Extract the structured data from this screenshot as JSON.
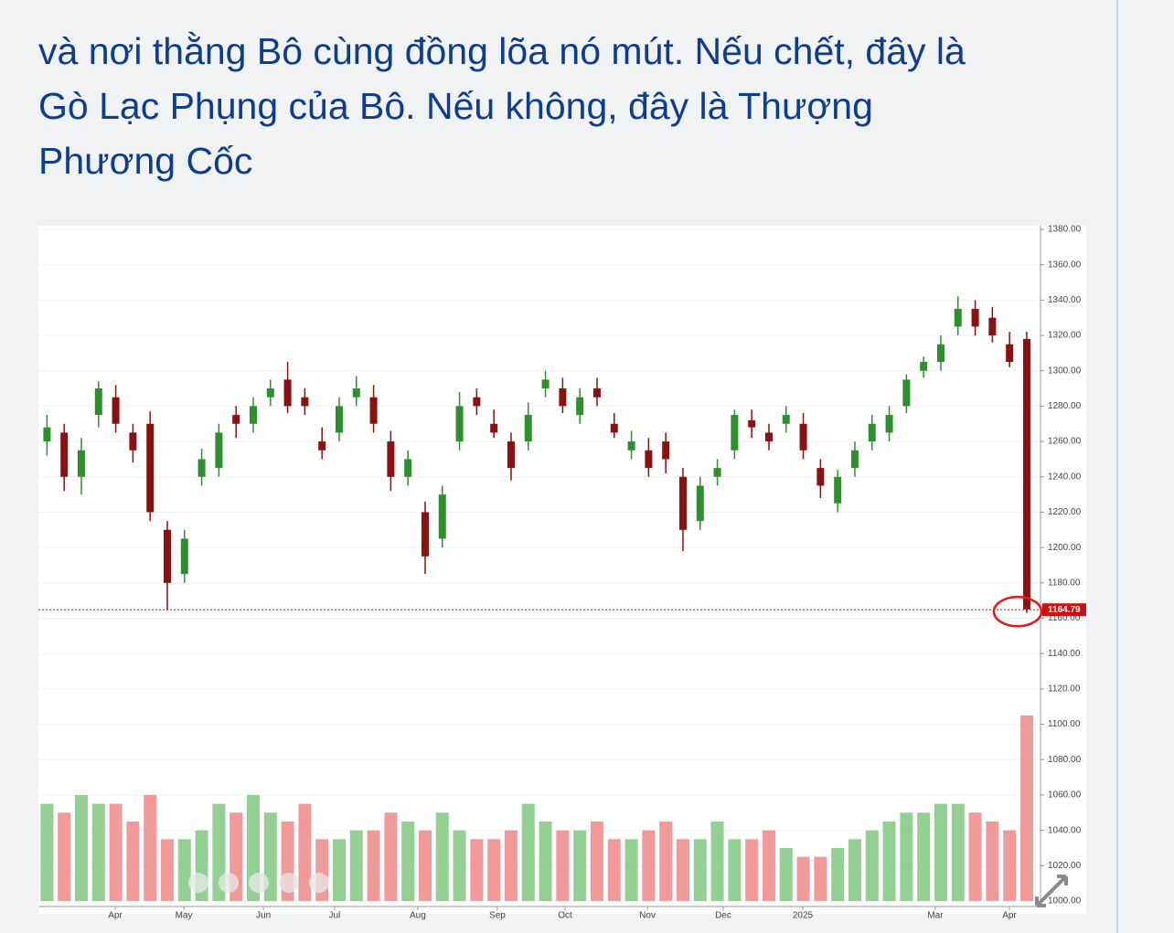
{
  "header": {
    "lines": [
      "và nơi thằng Bô cùng đồng lõa nó mút. Nếu chết, đây là",
      "Gò Lạc Phụng của Bô. Nếu không, đây là Thượng",
      "Phương Cốc"
    ]
  },
  "chart_data": {
    "type": "candlestick",
    "x": [
      0.5,
      1.5,
      2.5,
      3.5,
      4.5,
      5.5,
      6.5,
      7.5,
      8.5,
      9.5,
      10.5,
      11.5,
      12.5,
      13.5,
      14.5,
      15.5,
      16.5,
      17.5,
      18.5,
      19.5,
      20.5,
      21.5,
      22.5,
      23.5,
      24.5,
      25.5,
      26.5,
      27.5,
      28.5,
      29.5,
      30.5,
      31.5,
      32.5,
      33.5,
      34.5,
      35.5,
      36.5,
      37.5,
      38.5,
      39.5,
      40.5,
      41.5,
      42.5,
      43.5,
      44.5,
      45.5,
      46.5,
      47.5,
      48.5,
      49.5,
      50.5,
      51.5,
      52.5,
      53.5,
      54.5,
      55.5,
      56.5,
      57.5
    ],
    "open": [
      1260,
      1265,
      1240,
      1275,
      1285,
      1265,
      1270,
      1210,
      1185,
      1240,
      1245,
      1275,
      1270,
      1285,
      1295,
      1285,
      1260,
      1265,
      1285,
      1285,
      1260,
      1240,
      1220,
      1205,
      1260,
      1285,
      1270,
      1260,
      1260,
      1290,
      1290,
      1275,
      1290,
      1270,
      1255,
      1255,
      1260,
      1240,
      1215,
      1240,
      1255,
      1272,
      1265,
      1270,
      1270,
      1245,
      1225,
      1245,
      1260,
      1265,
      1280,
      1300,
      1305,
      1325,
      1335,
      1330,
      1315,
      1318
    ],
    "high": [
      1275,
      1270,
      1262,
      1294,
      1292,
      1270,
      1277,
      1215,
      1210,
      1256,
      1270,
      1280,
      1285,
      1295,
      1305,
      1290,
      1268,
      1285,
      1297,
      1292,
      1266,
      1255,
      1226,
      1235,
      1288,
      1290,
      1278,
      1265,
      1282,
      1300,
      1296,
      1290,
      1296,
      1276,
      1266,
      1262,
      1265,
      1245,
      1240,
      1250,
      1278,
      1278,
      1270,
      1280,
      1276,
      1250,
      1244,
      1260,
      1275,
      1280,
      1298,
      1308,
      1320,
      1342,
      1340,
      1336,
      1322,
      1322
    ],
    "low": [
      1252,
      1232,
      1230,
      1268,
      1265,
      1248,
      1215,
      1165,
      1180,
      1235,
      1240,
      1262,
      1265,
      1280,
      1276,
      1275,
      1250,
      1260,
      1280,
      1265,
      1232,
      1235,
      1185,
      1200,
      1255,
      1275,
      1262,
      1238,
      1255,
      1285,
      1276,
      1270,
      1280,
      1262,
      1250,
      1240,
      1242,
      1198,
      1210,
      1235,
      1250,
      1262,
      1255,
      1265,
      1250,
      1228,
      1220,
      1240,
      1255,
      1260,
      1276,
      1296,
      1300,
      1320,
      1320,
      1316,
      1302,
      1163
    ],
    "close": [
      1268,
      1240,
      1255,
      1290,
      1270,
      1255,
      1220,
      1180,
      1205,
      1250,
      1265,
      1270,
      1280,
      1290,
      1280,
      1280,
      1255,
      1280,
      1290,
      1270,
      1240,
      1250,
      1195,
      1230,
      1280,
      1280,
      1265,
      1245,
      1275,
      1295,
      1280,
      1285,
      1285,
      1265,
      1260,
      1245,
      1250,
      1210,
      1235,
      1245,
      1275,
      1268,
      1260,
      1275,
      1255,
      1235,
      1240,
      1255,
      1270,
      1275,
      1295,
      1305,
      1315,
      1335,
      1325,
      1320,
      1305,
      1165
    ],
    "volume": [
      1055,
      1050,
      1060,
      1055,
      1055,
      1045,
      1060,
      1035,
      1035,
      1040,
      1055,
      1050,
      1060,
      1050,
      1045,
      1055,
      1035,
      1035,
      1040,
      1040,
      1050,
      1045,
      1040,
      1050,
      1040,
      1035,
      1035,
      1040,
      1055,
      1045,
      1040,
      1040,
      1045,
      1035,
      1035,
      1040,
      1045,
      1035,
      1035,
      1045,
      1035,
      1035,
      1040,
      1030,
      1025,
      1025,
      1030,
      1035,
      1040,
      1045,
      1050,
      1050,
      1055,
      1055,
      1050,
      1045,
      1040,
      1105
    ],
    "up_color": "#2f8f2f",
    "down_color": "#8b1010",
    "volume_up_color": "#94cf94",
    "volume_down_color": "#f29a9a",
    "last_price": 1164.79,
    "last_price_color": "#d01010",
    "xlim": [
      0,
      58.3
    ],
    "xticks": [
      {
        "value": 4.47,
        "label": "Apr"
      },
      {
        "value": 8.46,
        "label": "May"
      },
      {
        "value": 13.09,
        "label": "Jun"
      },
      {
        "value": 17.23,
        "label": "Jul"
      },
      {
        "value": 22.07,
        "label": "Aug"
      },
      {
        "value": 26.7,
        "label": "Sep"
      },
      {
        "value": 30.64,
        "label": "Oct"
      },
      {
        "value": 35.43,
        "label": "Nov"
      },
      {
        "value": 39.84,
        "label": "Dec"
      },
      {
        "value": 44.47,
        "label": "2025"
      },
      {
        "value": 52.18,
        "label": "Mar"
      },
      {
        "value": 56.49,
        "label": "Apr"
      }
    ],
    "ylim": [
      1000,
      1380
    ],
    "yticks": [
      {
        "value": 1000,
        "label": "1000.00"
      },
      {
        "value": 1020,
        "label": "1020.00"
      },
      {
        "value": 1040,
        "label": "1040.00"
      },
      {
        "value": 1060,
        "label": "1060.00"
      },
      {
        "value": 1080,
        "label": "1080.00"
      },
      {
        "value": 1100,
        "label": "1100.00"
      },
      {
        "value": 1120,
        "label": "1120.00"
      },
      {
        "value": 1140,
        "label": "1140.00"
      },
      {
        "value": 1160,
        "label": "1160.00"
      },
      {
        "value": 1180,
        "label": "1180.00"
      },
      {
        "value": 1200,
        "label": "1200.00"
      },
      {
        "value": 1220,
        "label": "1220.00"
      },
      {
        "value": 1240,
        "label": "1240.00"
      },
      {
        "value": 1260,
        "label": "1260.00"
      },
      {
        "value": 1280,
        "label": "1280.00"
      },
      {
        "value": 1300,
        "label": "1300.00"
      },
      {
        "value": 1320,
        "label": "1320.00"
      },
      {
        "value": 1340,
        "label": "1340.00"
      },
      {
        "value": 1360,
        "label": "1360.00"
      },
      {
        "value": 1380,
        "label": "1380.00"
      }
    ],
    "grid": true
  }
}
